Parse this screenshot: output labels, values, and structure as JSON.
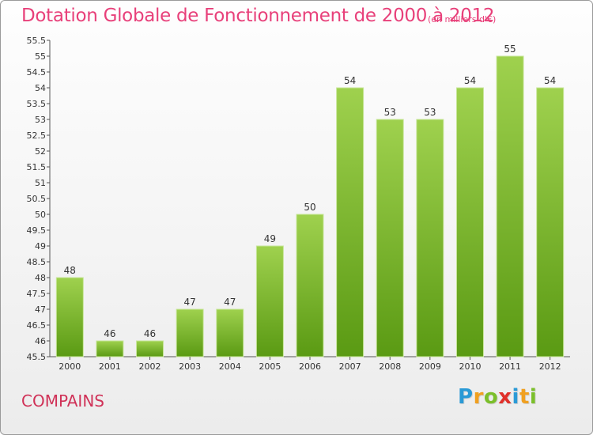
{
  "chart_data": {
    "type": "bar",
    "title": "Dotation Globale de Fonctionnement de 2000 à 2012",
    "unit_note": "(en milliers d'€)",
    "categories": [
      "2000",
      "2001",
      "2002",
      "2003",
      "2004",
      "2005",
      "2006",
      "2007",
      "2008",
      "2009",
      "2010",
      "2011",
      "2012"
    ],
    "values": [
      48,
      46,
      46,
      47,
      47,
      49,
      50,
      54,
      53,
      53,
      54,
      55,
      54
    ],
    "ylim": [
      45.5,
      55.5
    ],
    "ytick_step": 0.5,
    "yticks": [
      "45.5",
      "46",
      "46.5",
      "47",
      "47.5",
      "48",
      "48.5",
      "49",
      "49.5",
      "50",
      "50.5",
      "51",
      "51.5",
      "52",
      "52.5",
      "53",
      "53.5",
      "54",
      "54.5",
      "55",
      "55.5"
    ],
    "grid": false,
    "bar_color_top": "#9fd14e",
    "bar_color_bottom": "#5a9a13"
  },
  "footer": {
    "commune": "COMPAINS"
  },
  "logo": {
    "text": "Proxiti",
    "letters": [
      {
        "ch": "P",
        "color": "#2a9ad6"
      },
      {
        "ch": "r",
        "color": "#f0a020"
      },
      {
        "ch": "o",
        "color": "#7bbf2a"
      },
      {
        "ch": "x",
        "color": "#e0302a"
      },
      {
        "ch": "i",
        "color": "#2a9ad6"
      },
      {
        "ch": "t",
        "color": "#f0a020"
      },
      {
        "ch": "i",
        "color": "#7bbf2a"
      }
    ]
  }
}
